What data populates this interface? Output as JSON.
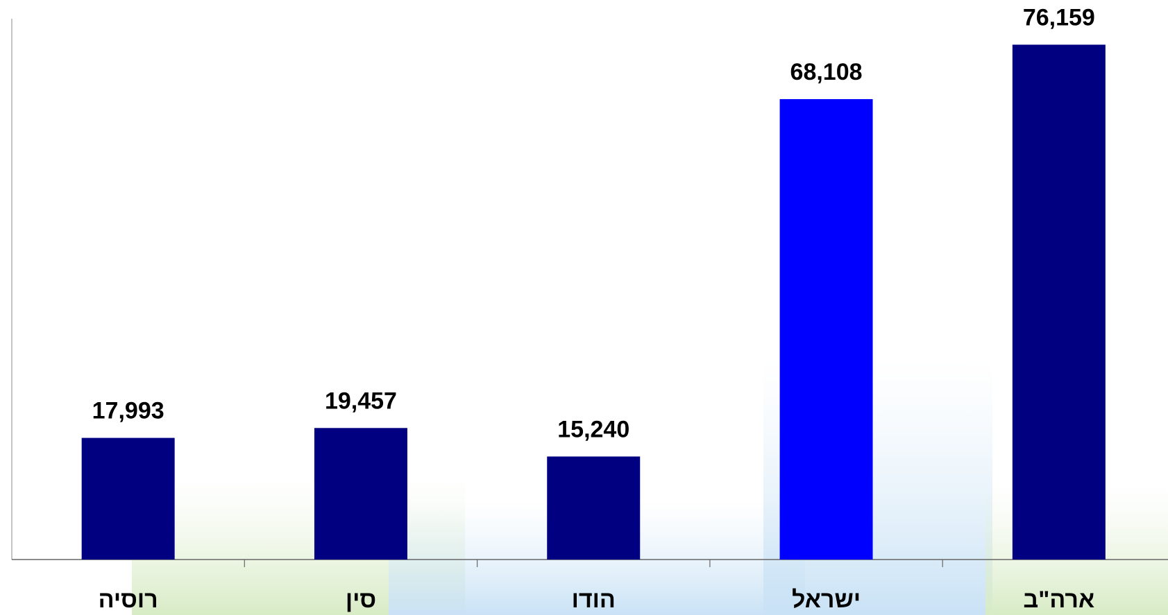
{
  "chart_data": {
    "type": "bar",
    "categories": [
      "רוסיה",
      "סין",
      "הודו",
      "ישראל",
      "ארה\"ב"
    ],
    "values": [
      17993,
      19457,
      15240,
      68108,
      76159
    ],
    "value_labels": [
      "17,993",
      "19,457",
      "15,240",
      "68,108",
      "76,159"
    ],
    "colors": [
      "#000080",
      "#000080",
      "#000080",
      "#0000ff",
      "#000080"
    ],
    "ylim": [
      0,
      80000
    ]
  }
}
